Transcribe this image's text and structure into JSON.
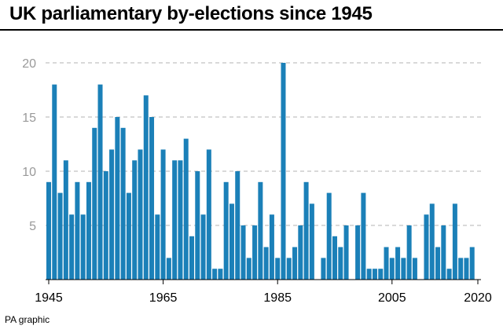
{
  "title": "UK parliamentary by-elections since 1945",
  "source": "PA graphic",
  "colors": {
    "bar": "#1b80b8",
    "grid": "#b3b3b3",
    "tick_label": "#999999",
    "x_tick_label": "#000000"
  },
  "chart_data": {
    "type": "bar",
    "title": "UK parliamentary by-elections since 1945",
    "xlabel": "",
    "ylabel": "",
    "x": [
      1945,
      1946,
      1947,
      1948,
      1949,
      1950,
      1951,
      1952,
      1953,
      1954,
      1955,
      1956,
      1957,
      1958,
      1959,
      1960,
      1961,
      1962,
      1963,
      1964,
      1965,
      1966,
      1967,
      1968,
      1969,
      1970,
      1971,
      1972,
      1973,
      1974,
      1975,
      1976,
      1977,
      1978,
      1979,
      1980,
      1981,
      1982,
      1983,
      1984,
      1985,
      1986,
      1987,
      1988,
      1989,
      1990,
      1991,
      1992,
      1993,
      1994,
      1995,
      1996,
      1997,
      1998,
      1999,
      2000,
      2001,
      2002,
      2003,
      2004,
      2005,
      2006,
      2007,
      2008,
      2009,
      2010,
      2011,
      2012,
      2013,
      2014,
      2015,
      2016,
      2017,
      2018,
      2019
    ],
    "values": [
      9,
      18,
      8,
      11,
      6,
      9,
      6,
      9,
      14,
      18,
      10,
      12,
      15,
      14,
      8,
      11,
      12,
      17,
      15,
      6,
      12,
      2,
      11,
      11,
      13,
      4,
      10,
      6,
      12,
      1,
      1,
      9,
      7,
      10,
      5,
      2,
      5,
      9,
      3,
      6,
      2,
      20,
      2,
      3,
      5,
      9,
      7,
      0,
      2,
      8,
      4,
      3,
      5,
      0,
      5,
      8,
      1,
      1,
      1,
      3,
      2,
      3,
      2,
      5,
      2,
      0,
      6,
      7,
      3,
      5,
      1,
      7,
      2,
      2,
      3
    ],
    "x_ticks": [
      "1945",
      "1965",
      "1985",
      "2005",
      "2020"
    ],
    "x_tick_values": [
      1945,
      1965,
      1985,
      2005,
      2020
    ],
    "y_ticks": [
      "5",
      "10",
      "15",
      "20"
    ],
    "y_tick_values": [
      5,
      10,
      15,
      20
    ],
    "ylim": [
      0,
      20
    ],
    "grid": true
  }
}
